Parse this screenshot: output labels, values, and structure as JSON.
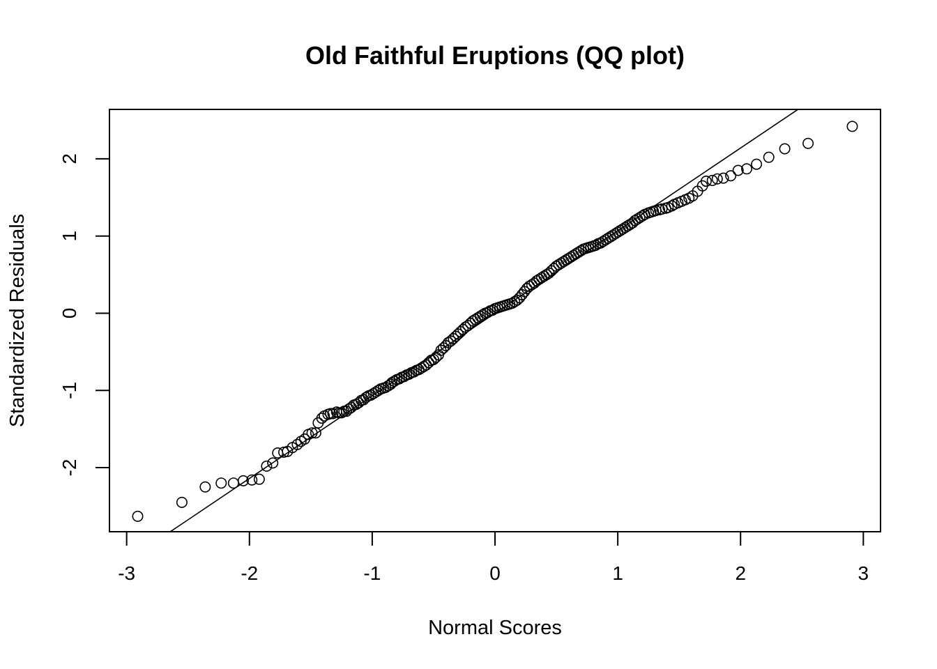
{
  "chart_data": {
    "type": "scatter",
    "title": "Old Faithful Eruptions (QQ plot)",
    "xlabel": "Normal Scores",
    "ylabel": "Standardized Residuals",
    "xlim": [
      -3.14,
      3.14
    ],
    "ylim": [
      -2.83,
      2.64
    ],
    "xticks": [
      -3,
      -2,
      -1,
      0,
      1,
      2,
      3
    ],
    "yticks": [
      -2,
      -1,
      0,
      1,
      2
    ],
    "grid": false,
    "reference_line": {
      "intercept": 0.0,
      "slope": 1.07
    },
    "marker": "open-circle",
    "points": [
      [
        -2.91,
        -2.63
      ],
      [
        -2.55,
        -2.45
      ],
      [
        -2.36,
        -2.25
      ],
      [
        -2.23,
        -2.2
      ],
      [
        -2.13,
        -2.2
      ],
      [
        -2.05,
        -2.17
      ],
      [
        -1.98,
        -2.16
      ],
      [
        -1.92,
        -2.15
      ],
      [
        -1.86,
        -1.98
      ],
      [
        -1.81,
        -1.94
      ],
      [
        -1.77,
        -1.81
      ],
      [
        -1.72,
        -1.8
      ],
      [
        -1.69,
        -1.79
      ],
      [
        -1.65,
        -1.74
      ],
      [
        -1.61,
        -1.7
      ],
      [
        -1.58,
        -1.66
      ],
      [
        -1.55,
        -1.63
      ],
      [
        -1.52,
        -1.57
      ],
      [
        -1.49,
        -1.55
      ],
      [
        -1.46,
        -1.55
      ],
      [
        -1.44,
        -1.42
      ],
      [
        -1.41,
        -1.36
      ],
      [
        -1.39,
        -1.33
      ],
      [
        -1.36,
        -1.31
      ],
      [
        -1.34,
        -1.3
      ],
      [
        -1.32,
        -1.3
      ],
      [
        -1.29,
        -1.28
      ],
      [
        -1.27,
        -1.29
      ],
      [
        -1.25,
        -1.29
      ],
      [
        -1.23,
        -1.27
      ],
      [
        -1.21,
        -1.27
      ],
      [
        -1.19,
        -1.24
      ],
      [
        -1.17,
        -1.22
      ],
      [
        -1.15,
        -1.19
      ],
      [
        -1.13,
        -1.18
      ],
      [
        -1.11,
        -1.16
      ],
      [
        -1.09,
        -1.13
      ],
      [
        -1.07,
        -1.12
      ],
      [
        -1.05,
        -1.09
      ],
      [
        -1.03,
        -1.07
      ],
      [
        -1.01,
        -1.06
      ],
      [
        -0.99,
        -1.04
      ],
      [
        -0.97,
        -1.02
      ],
      [
        -0.95,
        -1.0
      ],
      [
        -0.93,
        -0.98
      ],
      [
        -0.91,
        -0.97
      ],
      [
        -0.89,
        -0.96
      ],
      [
        -0.87,
        -0.94
      ],
      [
        -0.85,
        -0.92
      ],
      [
        -0.84,
        -0.9
      ],
      [
        -0.82,
        -0.88
      ],
      [
        -0.8,
        -0.86
      ],
      [
        -0.78,
        -0.85
      ],
      [
        -0.76,
        -0.83
      ],
      [
        -0.74,
        -0.82
      ],
      [
        -0.72,
        -0.8
      ],
      [
        -0.7,
        -0.79
      ],
      [
        -0.68,
        -0.77
      ],
      [
        -0.66,
        -0.76
      ],
      [
        -0.64,
        -0.74
      ],
      [
        -0.62,
        -0.73
      ],
      [
        -0.6,
        -0.71
      ],
      [
        -0.58,
        -0.69
      ],
      [
        -0.56,
        -0.67
      ],
      [
        -0.54,
        -0.64
      ],
      [
        -0.52,
        -0.61
      ],
      [
        -0.5,
        -0.6
      ],
      [
        -0.48,
        -0.57
      ],
      [
        -0.46,
        -0.54
      ],
      [
        -0.44,
        -0.48
      ],
      [
        -0.42,
        -0.45
      ],
      [
        -0.4,
        -0.42
      ],
      [
        -0.38,
        -0.38
      ],
      [
        -0.36,
        -0.36
      ],
      [
        -0.34,
        -0.33
      ],
      [
        -0.32,
        -0.3
      ],
      [
        -0.3,
        -0.27
      ],
      [
        -0.28,
        -0.24
      ],
      [
        -0.26,
        -0.21
      ],
      [
        -0.24,
        -0.18
      ],
      [
        -0.22,
        -0.16
      ],
      [
        -0.2,
        -0.13
      ],
      [
        -0.18,
        -0.1
      ],
      [
        -0.16,
        -0.08
      ],
      [
        -0.14,
        -0.06
      ],
      [
        -0.12,
        -0.04
      ],
      [
        -0.1,
        -0.02
      ],
      [
        -0.08,
        0.0
      ],
      [
        -0.06,
        0.01
      ],
      [
        -0.04,
        0.03
      ],
      [
        -0.02,
        0.04
      ],
      [
        0.0,
        0.06
      ],
      [
        0.02,
        0.07
      ],
      [
        0.04,
        0.08
      ],
      [
        0.06,
        0.09
      ],
      [
        0.08,
        0.1
      ],
      [
        0.1,
        0.11
      ],
      [
        0.12,
        0.12
      ],
      [
        0.14,
        0.13
      ],
      [
        0.16,
        0.15
      ],
      [
        0.18,
        0.17
      ],
      [
        0.2,
        0.2
      ],
      [
        0.22,
        0.24
      ],
      [
        0.24,
        0.28
      ],
      [
        0.26,
        0.32
      ],
      [
        0.28,
        0.35
      ],
      [
        0.3,
        0.37
      ],
      [
        0.32,
        0.39
      ],
      [
        0.34,
        0.42
      ],
      [
        0.36,
        0.44
      ],
      [
        0.38,
        0.46
      ],
      [
        0.4,
        0.48
      ],
      [
        0.42,
        0.5
      ],
      [
        0.44,
        0.52
      ],
      [
        0.46,
        0.55
      ],
      [
        0.48,
        0.58
      ],
      [
        0.5,
        0.61
      ],
      [
        0.52,
        0.63
      ],
      [
        0.54,
        0.65
      ],
      [
        0.56,
        0.67
      ],
      [
        0.58,
        0.69
      ],
      [
        0.6,
        0.71
      ],
      [
        0.62,
        0.73
      ],
      [
        0.64,
        0.75
      ],
      [
        0.66,
        0.77
      ],
      [
        0.68,
        0.79
      ],
      [
        0.7,
        0.81
      ],
      [
        0.72,
        0.83
      ],
      [
        0.74,
        0.84
      ],
      [
        0.76,
        0.85
      ],
      [
        0.78,
        0.86
      ],
      [
        0.8,
        0.87
      ],
      [
        0.82,
        0.88
      ],
      [
        0.84,
        0.9
      ],
      [
        0.86,
        0.91
      ],
      [
        0.88,
        0.93
      ],
      [
        0.9,
        0.95
      ],
      [
        0.92,
        0.97
      ],
      [
        0.94,
        0.99
      ],
      [
        0.96,
        1.01
      ],
      [
        0.98,
        1.03
      ],
      [
        1.0,
        1.05
      ],
      [
        1.02,
        1.07
      ],
      [
        1.04,
        1.09
      ],
      [
        1.06,
        1.11
      ],
      [
        1.08,
        1.13
      ],
      [
        1.1,
        1.15
      ],
      [
        1.12,
        1.17
      ],
      [
        1.14,
        1.2
      ],
      [
        1.16,
        1.22
      ],
      [
        1.18,
        1.24
      ],
      [
        1.2,
        1.26
      ],
      [
        1.22,
        1.28
      ],
      [
        1.25,
        1.3
      ],
      [
        1.27,
        1.31
      ],
      [
        1.29,
        1.32
      ],
      [
        1.31,
        1.33
      ],
      [
        1.34,
        1.34
      ],
      [
        1.36,
        1.35
      ],
      [
        1.39,
        1.36
      ],
      [
        1.41,
        1.37
      ],
      [
        1.44,
        1.39
      ],
      [
        1.46,
        1.41
      ],
      [
        1.49,
        1.43
      ],
      [
        1.52,
        1.45
      ],
      [
        1.55,
        1.47
      ],
      [
        1.58,
        1.49
      ],
      [
        1.61,
        1.52
      ],
      [
        1.65,
        1.58
      ],
      [
        1.69,
        1.65
      ],
      [
        1.72,
        1.71
      ],
      [
        1.77,
        1.72
      ],
      [
        1.81,
        1.74
      ],
      [
        1.86,
        1.75
      ],
      [
        1.92,
        1.78
      ],
      [
        1.98,
        1.85
      ],
      [
        2.05,
        1.87
      ],
      [
        2.13,
        1.93
      ],
      [
        2.23,
        2.02
      ],
      [
        2.36,
        2.13
      ],
      [
        2.55,
        2.2
      ],
      [
        2.91,
        2.42
      ]
    ]
  }
}
